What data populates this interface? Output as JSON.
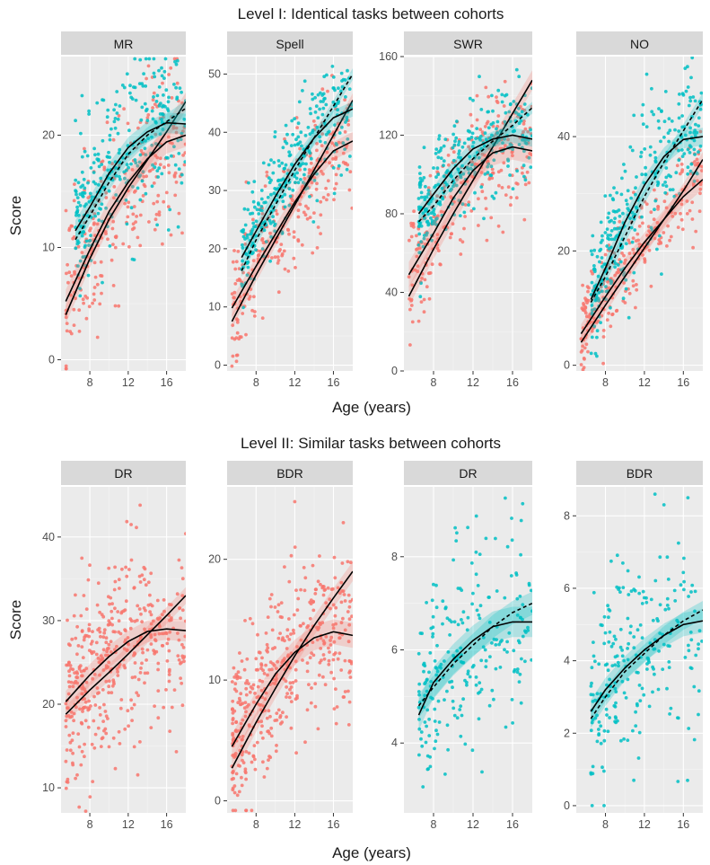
{
  "figure": {
    "level1_title": "Level I: Identical tasks between cohorts",
    "level2_title": "Level II: Similar tasks between cohorts",
    "xlabel": "Age (years)",
    "ylabel": "Score",
    "colors": {
      "cohort_red": "#F8766D",
      "cohort_teal": "#00BFC4",
      "panel_bg": "#EBEBEB",
      "strip_bg": "#D9D9D9",
      "grid": "#FFFFFF",
      "fit": "#000000",
      "ribbon": "#808080"
    }
  },
  "chart_data": [
    {
      "type": "scatter",
      "row": 1,
      "title": "MR",
      "xlim": [
        5,
        18
      ],
      "ylim": [
        -1,
        27
      ],
      "xticks": [
        8,
        12,
        16
      ],
      "yticks": [
        0,
        10,
        20
      ],
      "series": [
        {
          "name": "red cohort",
          "color": "#F8766D",
          "n": 260,
          "xrange": [
            5.5,
            18
          ],
          "fit": [
            [
              5.5,
              4
            ],
            [
              8,
              9
            ],
            [
              10,
              12.5
            ],
            [
              12,
              15.3
            ],
            [
              14,
              17.8
            ],
            [
              16,
              20.3
            ],
            [
              18,
              23
            ]
          ],
          "ribbon_hw": 0.8,
          "fit2": [
            [
              5.5,
              5.2
            ],
            [
              8,
              9.8
            ],
            [
              10,
              13.2
            ],
            [
              12,
              15.8
            ],
            [
              14,
              17.9
            ],
            [
              16,
              19.4
            ],
            [
              18,
              20
            ]
          ],
          "spread": 3.8
        },
        {
          "name": "teal cohort",
          "color": "#00BFC4",
          "n": 300,
          "xrange": [
            6.5,
            18
          ],
          "fit": [
            [
              6.5,
              10.7
            ],
            [
              8,
              12.8
            ],
            [
              10,
              15.8
            ],
            [
              12,
              18.3
            ],
            [
              14,
              20
            ],
            [
              16,
              21.2
            ],
            [
              18,
              22.4
            ]
          ],
          "ribbon_hw": 0.7,
          "fit2": [
            [
              6.5,
              11.5
            ],
            [
              8,
              13.6
            ],
            [
              10,
              16.6
            ],
            [
              12,
              18.9
            ],
            [
              14,
              20.3
            ],
            [
              16,
              21.1
            ],
            [
              18,
              21
            ]
          ],
          "spread": 3.6
        }
      ]
    },
    {
      "type": "scatter",
      "row": 1,
      "title": "Spell",
      "xlim": [
        5,
        18
      ],
      "ylim": [
        -1,
        53
      ],
      "xticks": [
        8,
        12,
        16
      ],
      "yticks": [
        0,
        10,
        20,
        30,
        40,
        50
      ],
      "series": [
        {
          "name": "red cohort",
          "color": "#F8766D",
          "n": 260,
          "xrange": [
            5.5,
            18
          ],
          "fit": [
            [
              5.5,
              7.5
            ],
            [
              8,
              15.5
            ],
            [
              10,
              21.5
            ],
            [
              12,
              27.5
            ],
            [
              14,
              33.5
            ],
            [
              16,
              39.5
            ],
            [
              18,
              45.5
            ]
          ],
          "ribbon_hw": 1.2,
          "fit2": [
            [
              5.5,
              9.8
            ],
            [
              8,
              17
            ],
            [
              10,
              22.5
            ],
            [
              12,
              28
            ],
            [
              14,
              32.8
            ],
            [
              16,
              36.8
            ],
            [
              18,
              38.5
            ]
          ],
          "spread": 5.5
        },
        {
          "name": "teal cohort",
          "color": "#00BFC4",
          "n": 300,
          "xrange": [
            6.5,
            18
          ],
          "fit": [
            [
              6.5,
              16.2
            ],
            [
              8,
              21.5
            ],
            [
              10,
              27.5
            ],
            [
              12,
              33.5
            ],
            [
              14,
              39
            ],
            [
              16,
              44.5
            ],
            [
              18,
              50
            ]
          ],
          "ribbon_hw": 1.0,
          "fit2": [
            [
              6.5,
              18.5
            ],
            [
              8,
              23
            ],
            [
              10,
              29
            ],
            [
              12,
              34.5
            ],
            [
              14,
              39
            ],
            [
              16,
              42.5
            ],
            [
              18,
              44
            ]
          ],
          "spread": 5
        }
      ]
    },
    {
      "type": "scatter",
      "row": 1,
      "title": "SWR",
      "xlim": [
        5,
        18
      ],
      "ylim": [
        0,
        160
      ],
      "xticks": [
        8,
        12,
        16
      ],
      "yticks": [
        0,
        40,
        80,
        120,
        160
      ],
      "series": [
        {
          "name": "red cohort",
          "color": "#F8766D",
          "n": 260,
          "xrange": [
            5.5,
            18
          ],
          "fit": [
            [
              5.5,
              38
            ],
            [
              8,
              62
            ],
            [
              10,
              80
            ],
            [
              12,
              97
            ],
            [
              14,
              114
            ],
            [
              16,
              131
            ],
            [
              18,
              148
            ]
          ],
          "ribbon_hw": 5,
          "fit2": [
            [
              5.5,
              49
            ],
            [
              8,
              70
            ],
            [
              10,
              88
            ],
            [
              12,
              102
            ],
            [
              14,
              111
            ],
            [
              16,
              114
            ],
            [
              18,
              112
            ]
          ],
          "spread": 16
        },
        {
          "name": "teal cohort",
          "color": "#00BFC4",
          "n": 300,
          "xrange": [
            6.5,
            18
          ],
          "fit": [
            [
              6.5,
              76
            ],
            [
              8,
              84
            ],
            [
              10,
              97
            ],
            [
              12,
              108
            ],
            [
              14,
              117
            ],
            [
              16,
              125
            ],
            [
              18,
              134
            ]
          ],
          "ribbon_hw": 3,
          "fit2": [
            [
              6.5,
              80
            ],
            [
              8,
              90
            ],
            [
              10,
              103
            ],
            [
              12,
              113
            ],
            [
              14,
              118
            ],
            [
              16,
              120
            ],
            [
              18,
              118
            ]
          ],
          "spread": 13
        }
      ]
    },
    {
      "type": "scatter",
      "row": 1,
      "title": "NO",
      "xlim": [
        5,
        18
      ],
      "ylim": [
        -1,
        54
      ],
      "xticks": [
        8,
        12,
        16
      ],
      "yticks": [
        0,
        20,
        40
      ],
      "series": [
        {
          "name": "red cohort",
          "color": "#F8766D",
          "n": 260,
          "xrange": [
            5.5,
            18
          ],
          "fit": [
            [
              5.5,
              4
            ],
            [
              8,
              10.5
            ],
            [
              10,
              15.5
            ],
            [
              12,
              20.5
            ],
            [
              14,
              25.5
            ],
            [
              16,
              30.5
            ],
            [
              18,
              36
            ]
          ],
          "ribbon_hw": 1.3,
          "fit2": [
            [
              5.5,
              5.5
            ],
            [
              8,
              12
            ],
            [
              10,
              17
            ],
            [
              12,
              21.5
            ],
            [
              14,
              25.5
            ],
            [
              16,
              29.5
            ],
            [
              18,
              32.5
            ]
          ],
          "spread": 4.5
        },
        {
          "name": "teal cohort",
          "color": "#00BFC4",
          "n": 300,
          "xrange": [
            6.5,
            18
          ],
          "fit": [
            [
              6.5,
              11
            ],
            [
              8,
              15.5
            ],
            [
              10,
              22.5
            ],
            [
              12,
              29.5
            ],
            [
              14,
              35.5
            ],
            [
              16,
              41
            ],
            [
              18,
              46.5
            ]
          ],
          "ribbon_hw": 1.2,
          "fit2": [
            [
              6.5,
              11.5
            ],
            [
              8,
              17
            ],
            [
              10,
              25
            ],
            [
              12,
              31.5
            ],
            [
              14,
              36.5
            ],
            [
              16,
              39.5
            ],
            [
              18,
              40
            ]
          ],
          "spread": 6
        }
      ]
    },
    {
      "type": "scatter",
      "row": 2,
      "title": "DR",
      "xlim": [
        5,
        18
      ],
      "ylim": [
        7,
        46
      ],
      "xticks": [
        8,
        12,
        16
      ],
      "yticks": [
        10,
        20,
        30,
        40
      ],
      "series": [
        {
          "name": "red cohort",
          "color": "#F8766D",
          "n": 430,
          "xrange": [
            5.5,
            18
          ],
          "fit": [
            [
              5.5,
              18.8
            ],
            [
              8,
              21.7
            ],
            [
              10,
              23.8
            ],
            [
              12,
              26
            ],
            [
              14,
              28.3
            ],
            [
              16,
              30.6
            ],
            [
              18,
              33
            ]
          ],
          "ribbon_hw": 1.0,
          "fit2": [
            [
              5.5,
              20.3
            ],
            [
              8,
              23.5
            ],
            [
              10,
              25.7
            ],
            [
              12,
              27.5
            ],
            [
              14,
              28.7
            ],
            [
              16,
              29
            ],
            [
              18,
              28.8
            ]
          ],
          "spread": 5.5
        }
      ]
    },
    {
      "type": "scatter",
      "row": 2,
      "title": "BDR",
      "xlim": [
        5,
        18
      ],
      "ylim": [
        -1,
        26
      ],
      "xticks": [
        8,
        12,
        16
      ],
      "yticks": [
        0,
        10,
        20
      ],
      "series": [
        {
          "name": "red cohort",
          "color": "#F8766D",
          "n": 430,
          "xrange": [
            5.5,
            18
          ],
          "fit": [
            [
              5.5,
              2.7
            ],
            [
              8,
              6.5
            ],
            [
              10,
              9.3
            ],
            [
              12,
              12
            ],
            [
              14,
              14.5
            ],
            [
              16,
              16.8
            ],
            [
              18,
              19
            ]
          ],
          "ribbon_hw": 0.8,
          "fit2": [
            [
              5.5,
              4.5
            ],
            [
              8,
              8
            ],
            [
              10,
              10.5
            ],
            [
              12,
              12.3
            ],
            [
              14,
              13.5
            ],
            [
              16,
              14
            ],
            [
              18,
              13.7
            ]
          ],
          "spread": 3.5
        }
      ]
    },
    {
      "type": "scatter",
      "row": 2,
      "title": "DR",
      "xlim": [
        5,
        18
      ],
      "ylim": [
        2.5,
        9.5
      ],
      "xticks": [
        8,
        12,
        16
      ],
      "yticks": [
        4,
        6,
        8
      ],
      "series": [
        {
          "name": "teal cohort",
          "color": "#00BFC4",
          "n": 230,
          "xrange": [
            6.5,
            18
          ],
          "fit": [
            [
              6.5,
              4.8
            ],
            [
              8,
              5.2
            ],
            [
              10,
              5.7
            ],
            [
              12,
              6.1
            ],
            [
              14,
              6.5
            ],
            [
              16,
              6.8
            ],
            [
              18,
              7
            ]
          ],
          "ribbon_hw": 0.25,
          "fit2": [
            [
              6.5,
              4.6
            ],
            [
              8,
              5.3
            ],
            [
              10,
              5.8
            ],
            [
              12,
              6.2
            ],
            [
              14,
              6.5
            ],
            [
              16,
              6.6
            ],
            [
              18,
              6.6
            ]
          ],
          "spread": 1.2
        }
      ]
    },
    {
      "type": "scatter",
      "row": 2,
      "title": "BDR",
      "xlim": [
        5,
        18
      ],
      "ylim": [
        -0.2,
        8.8
      ],
      "xticks": [
        8,
        12,
        16
      ],
      "yticks": [
        0,
        2,
        4,
        6,
        8
      ],
      "series": [
        {
          "name": "teal cohort",
          "color": "#00BFC4",
          "n": 230,
          "xrange": [
            6.5,
            18
          ],
          "fit": [
            [
              6.5,
              2.4
            ],
            [
              8,
              3
            ],
            [
              10,
              3.7
            ],
            [
              12,
              4.2
            ],
            [
              14,
              4.7
            ],
            [
              16,
              5.1
            ],
            [
              18,
              5.4
            ]
          ],
          "ribbon_hw": 0.25,
          "fit2": [
            [
              6.5,
              2.6
            ],
            [
              8,
              3.2
            ],
            [
              10,
              3.8
            ],
            [
              12,
              4.3
            ],
            [
              14,
              4.7
            ],
            [
              16,
              5
            ],
            [
              18,
              5.1
            ]
          ],
          "spread": 1.4
        }
      ]
    }
  ]
}
